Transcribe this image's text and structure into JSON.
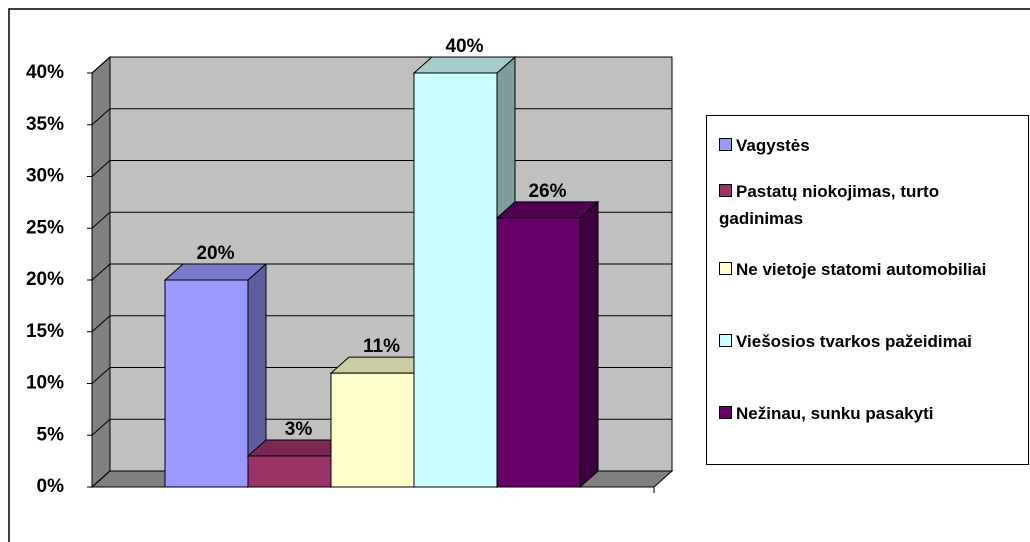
{
  "chart_data": {
    "type": "bar3d",
    "categories": [
      null
    ],
    "series": [
      {
        "name": "Vagystės",
        "color": "#9999ff",
        "values": [
          20
        ],
        "value_labels": [
          "20%"
        ]
      },
      {
        "name": "Pastatų niokojimas, turto gadinimas",
        "color": "#993366",
        "values": [
          3
        ],
        "value_labels": [
          "3%"
        ]
      },
      {
        "name": "Ne vietoje statomi automobiliai",
        "color": "#ffffcc",
        "values": [
          11
        ],
        "value_labels": [
          "11%"
        ]
      },
      {
        "name": "Viešosios tvarkos pažeidimai",
        "color": "#ccffff",
        "values": [
          40
        ],
        "value_labels": [
          "40%"
        ]
      },
      {
        "name": "Nežinau, sunku pasakyti",
        "color": "#660066",
        "values": [
          26
        ],
        "value_labels": [
          "26%"
        ]
      }
    ],
    "ylim": [
      0,
      40
    ],
    "yticks": [
      {
        "value": 0,
        "label": "0%"
      },
      {
        "value": 5,
        "label": "5%"
      },
      {
        "value": 10,
        "label": "10%"
      },
      {
        "value": 15,
        "label": "15%"
      },
      {
        "value": 20,
        "label": "20%"
      },
      {
        "value": 25,
        "label": "25%"
      },
      {
        "value": 30,
        "label": "30%"
      },
      {
        "value": 35,
        "label": "35%"
      },
      {
        "value": 40,
        "label": "40%"
      }
    ],
    "grid": true,
    "legend": "right"
  }
}
